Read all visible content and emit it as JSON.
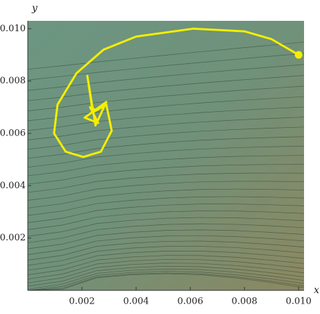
{
  "chart_data": {
    "type": "line",
    "x_label": "x",
    "y_label": "y",
    "xlim": [
      0,
      0.0102
    ],
    "ylim": [
      0,
      0.0103
    ],
    "xticks": [
      0.002,
      0.004,
      0.006,
      0.008,
      {
        "value": 0.01,
        "label": "0.010"
      }
    ],
    "yticks": [
      0.002,
      0.004,
      0.006,
      0.008,
      {
        "value": 0.01,
        "label": "0.010"
      }
    ],
    "series": [
      {
        "color": "#f5ee00",
        "x": [
          0.01,
          0.009,
          0.008,
          0.0061,
          0.004,
          0.0028,
          0.0018,
          0.0011,
          0.00097,
          0.0014,
          0.00205,
          0.0027,
          0.0031,
          0.0029,
          0.0024,
          0.0022,
          0.0025,
          0.0029,
          0.0021,
          0.0026,
          0.0023,
          0.0025,
          0.0024
        ],
        "y": [
          0.009,
          0.0096,
          0.0099,
          0.01,
          0.0097,
          0.0092,
          0.0083,
          0.0071,
          0.006,
          0.0053,
          0.0051,
          0.0053,
          0.0061,
          0.0071,
          0.0068,
          0.0082,
          0.0063,
          0.0072,
          0.0066,
          0.0064,
          0.007,
          0.0069,
          0.0068
        ]
      }
    ]
  }
}
